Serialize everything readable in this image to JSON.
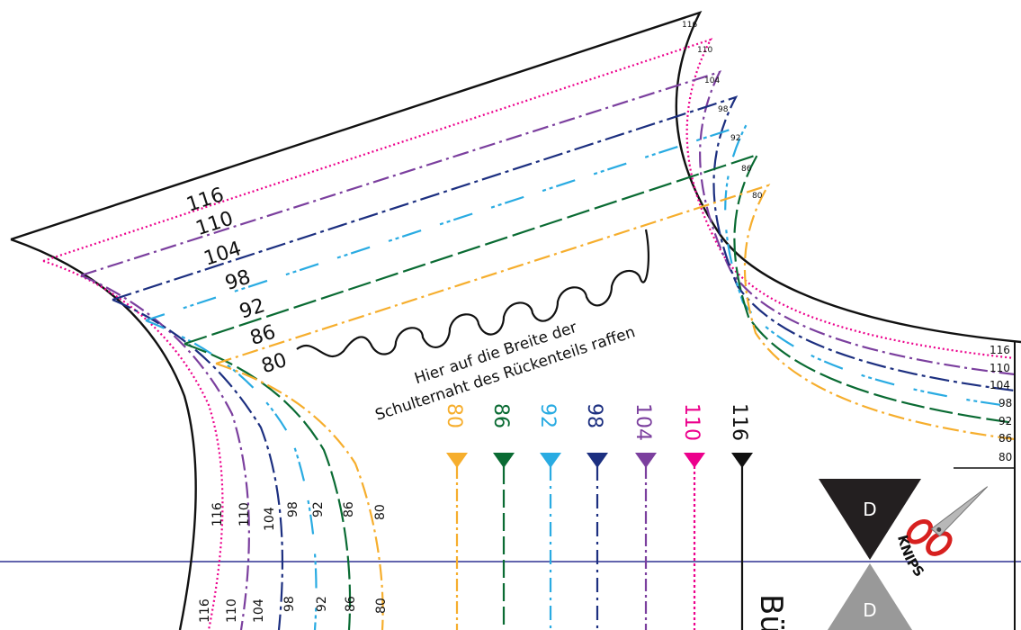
{
  "pattern": {
    "sizes": [
      "80",
      "86",
      "92",
      "98",
      "104",
      "110",
      "116"
    ],
    "colors": {
      "80": "#f6ae2d",
      "86": "#0a6b33",
      "92": "#29abe2",
      "98": "#1c2f80",
      "104": "#7b3f9e",
      "110": "#ec008c",
      "116": "#111111"
    },
    "grain_arrow_labels": [
      "80",
      "86",
      "92",
      "98",
      "104",
      "110",
      "116"
    ],
    "gather_instruction": {
      "line1": "Hier auf die Breite der",
      "line2": "Schulternaht des Rückenteils raffen"
    },
    "notch_marker": {
      "top_label": "D",
      "bottom_label": "D",
      "cut_label": "KNIPS",
      "scissors_icon": "scissors-icon"
    },
    "partial_title": "Bü"
  }
}
